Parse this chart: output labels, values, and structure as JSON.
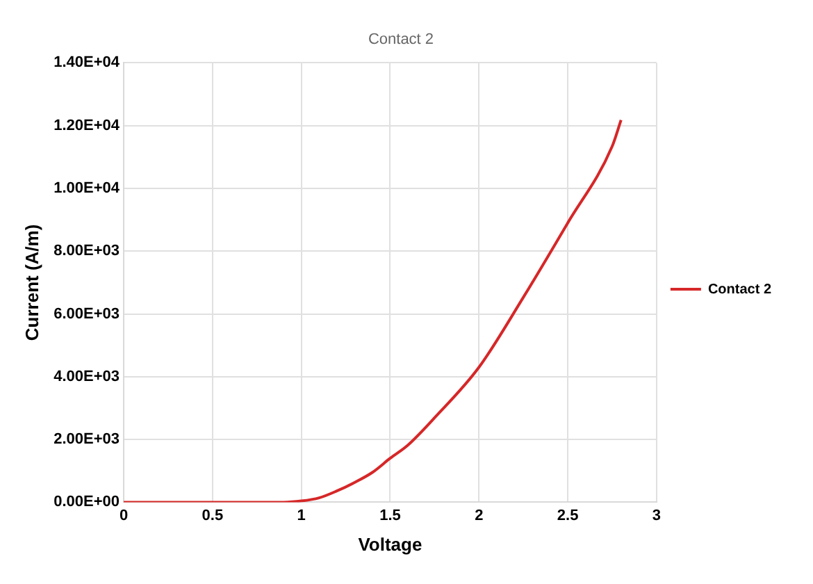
{
  "chart_data": {
    "type": "line",
    "title": "Contact 2",
    "xlabel": "Voltage",
    "ylabel": "Current (A/m)",
    "x": [
      0,
      0.5,
      0.9,
      1,
      1.1,
      1.2,
      1.3,
      1.4,
      1.5,
      1.6,
      1.75,
      2,
      2.25,
      2.5,
      2.75,
      2.8
    ],
    "series": [
      {
        "name": "Contact 2",
        "color": "#d62728",
        "values": [
          0,
          0,
          0,
          40,
          140,
          360,
          630,
          950,
          1400,
          1820,
          2690,
          4300,
          6530,
          8900,
          11340,
          12180
        ]
      }
    ],
    "xlim": [
      0,
      3
    ],
    "xticks": [
      0,
      0.5,
      1,
      1.5,
      2,
      2.5,
      3
    ],
    "ylim": [
      0,
      14000
    ],
    "yticks": [
      {
        "value": 0,
        "label": "0.00E+00"
      },
      {
        "value": 2000,
        "label": "2.00E+03"
      },
      {
        "value": 4000,
        "label": "4.00E+03"
      },
      {
        "value": 6000,
        "label": "6.00E+03"
      },
      {
        "value": 8000,
        "label": "8.00E+03"
      },
      {
        "value": 10000,
        "label": "1.00E+04"
      },
      {
        "value": 12000,
        "label": "1.20E+04"
      },
      {
        "value": 14000,
        "label": "1.40E+04"
      }
    ],
    "grid": true,
    "legend": "right",
    "marker": "none",
    "line_style": "solid"
  }
}
